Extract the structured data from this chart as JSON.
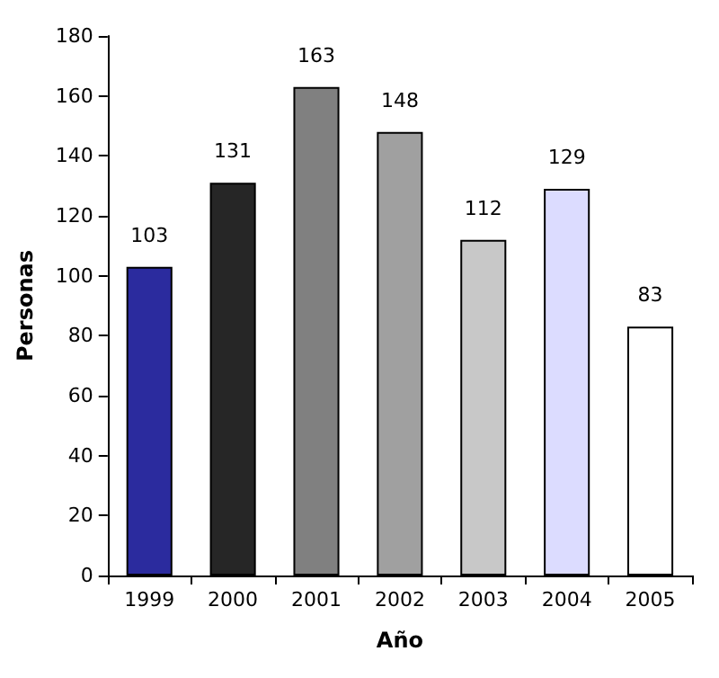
{
  "chart_data": {
    "type": "bar",
    "xlabel": "Año",
    "ylabel": "Personas",
    "categories": [
      "1999",
      "2000",
      "2001",
      "2002",
      "2003",
      "2004",
      "2005"
    ],
    "values": [
      103,
      131,
      163,
      148,
      112,
      129,
      83
    ],
    "colors": [
      "#2b2b9e",
      "#262626",
      "#808080",
      "#a0a0a0",
      "#c8c8c8",
      "#dcdcff",
      "#ffffff"
    ],
    "ylim": [
      0,
      180
    ],
    "yticks": [
      0,
      20,
      40,
      60,
      80,
      100,
      120,
      140,
      160,
      180
    ],
    "grid": false,
    "data_labels": true
  }
}
